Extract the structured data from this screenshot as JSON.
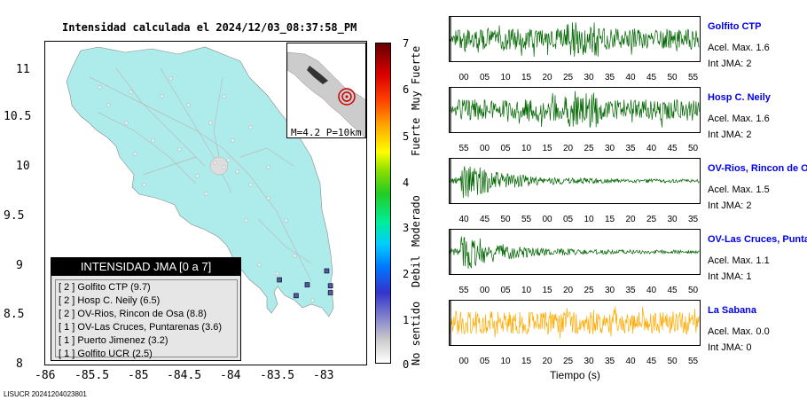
{
  "title": "Intensidad calculada el 2024/12/03_08:37:58_PM",
  "map": {
    "y_ticks": [
      "11",
      "10.5",
      "10",
      "9.5",
      "9",
      "8.5",
      "8"
    ],
    "x_ticks": [
      "-86",
      "-85.5",
      "-85",
      "-84.5",
      "-84",
      "-83.5",
      "-83"
    ],
    "inset_caption": "M=4.2 P=10km",
    "land_color": "#aeebeb",
    "stations": [
      {
        "name": "Golfito CTP",
        "lon": -82.93,
        "lat": 8.57
      },
      {
        "name": "Hosp C. Neily",
        "lon": -82.93,
        "lat": 8.64
      },
      {
        "name": "OV-Rios, Rincon de Osa",
        "lon": -83.48,
        "lat": 8.7
      },
      {
        "name": "OV-Las Cruces, Puntarenas",
        "lon": -82.97,
        "lat": 8.79
      },
      {
        "name": "Puerto Jimenez",
        "lon": -83.3,
        "lat": 8.54
      },
      {
        "name": "Golfito UCR",
        "lon": -83.18,
        "lat": 8.65
      }
    ]
  },
  "legend": {
    "title": "INTENSIDAD JMA [0 a 7]",
    "items": [
      "[ 2 ]  Golfito CTP (9.7)",
      "[ 2 ]  Hosp C. Neily (6.5)",
      "[ 2 ]  OV-Rios, Rincon de Osa (8.8)",
      "[ 1 ]  OV-Las Cruces, Puntarenas (3.6)",
      "[ 1 ]  Puerto Jimenez (3.2)",
      "[ 1 ]  Golfito UCR (2.5)"
    ]
  },
  "colorbar": {
    "ticks": [
      "7",
      "6",
      "5",
      "4",
      "3",
      "2",
      "1",
      "0"
    ],
    "categories": [
      "Muy Fuerte",
      "Fuerte",
      "Moderado",
      "Debil",
      "No sentido"
    ]
  },
  "traces": [
    {
      "name": "Golfito CTP",
      "acel": "Acel. Max. 1.6",
      "int": "Int JMA: 2",
      "color": "#006600",
      "ticks": [
        "00",
        "05",
        "10",
        "15",
        "20",
        "25",
        "30",
        "35",
        "40",
        "45",
        "50",
        "55"
      ],
      "envelope": "sustained"
    },
    {
      "name": "Hosp C. Neily",
      "acel": "Acel. Max. 1.6",
      "int": "Int JMA: 2",
      "color": "#006600",
      "ticks": [
        "55",
        "00",
        "05",
        "10",
        "15",
        "20",
        "25",
        "30",
        "35",
        "40",
        "45",
        "50"
      ],
      "envelope": "sustained"
    },
    {
      "name": "OV-Rios, Rincon de Os",
      "acel": "Acel. Max. 1.5",
      "int": "Int JMA: 2",
      "color": "#006600",
      "ticks": [
        "40",
        "45",
        "50",
        "55",
        "00",
        "05",
        "10",
        "15",
        "20",
        "25",
        "30",
        "35"
      ],
      "envelope": "decay"
    },
    {
      "name": "OV-Las Cruces, Puntar",
      "acel": "Acel. Max. 1.1",
      "int": "Int JMA: 1",
      "color": "#006600",
      "ticks": [
        "55",
        "00",
        "05",
        "10",
        "15",
        "20",
        "25",
        "30",
        "35",
        "40",
        "45",
        "50"
      ],
      "envelope": "decay"
    },
    {
      "name": "La Sabana",
      "acel": "Acel. Max. 0.0",
      "int": "Int JMA: 0",
      "color": "#ffaa00",
      "ticks": [
        "00",
        "05",
        "10",
        "15",
        "20",
        "25",
        "30",
        "35",
        "40",
        "45",
        "50",
        "55"
      ],
      "envelope": "flat"
    }
  ],
  "x_axis_title": "Tiempo (s)",
  "footer": "LISUCR 20241204023801"
}
